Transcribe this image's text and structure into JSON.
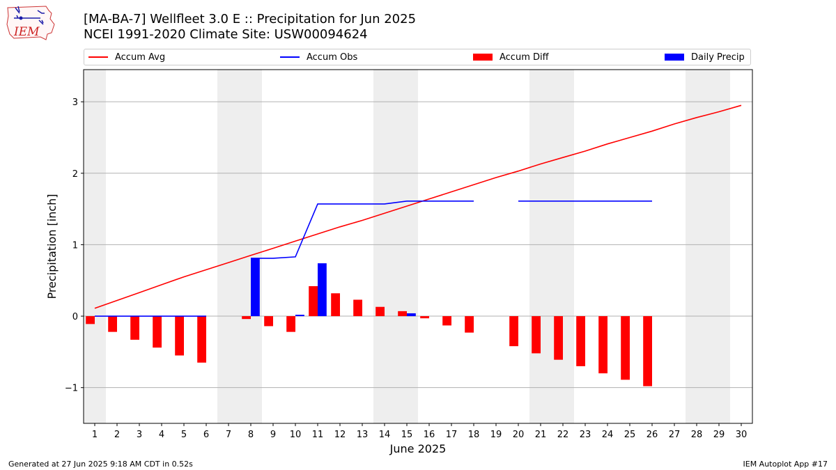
{
  "header": {
    "title_line1": "[MA-BA-7] Wellfleet 3.0 E :: Precipitation for Jun 2025",
    "title_line2": "NCEI 1991-2020 Climate Site: USW00094624",
    "logo_text": "IEM"
  },
  "footer": {
    "generated": "Generated at 27 Jun 2025 9:18 AM CDT in 0.52s",
    "app": "IEM Autoplot App #17"
  },
  "colors": {
    "avg": "#ff0000",
    "obs": "#0000ff",
    "diff": "#ff0000",
    "daily": "#0000ff",
    "weekend_band": "#eeeeee",
    "grid": "#b0b0b0"
  },
  "chart_data": {
    "type": "bar",
    "xlabel": "June 2025",
    "ylabel": "Precipitation [inch]",
    "xlim": [
      0.5,
      30.5
    ],
    "ylim": [
      -1.5,
      3.45
    ],
    "x_ticks": [
      1,
      2,
      3,
      4,
      5,
      6,
      7,
      8,
      9,
      10,
      11,
      12,
      13,
      14,
      15,
      16,
      17,
      18,
      19,
      20,
      21,
      22,
      23,
      24,
      25,
      26,
      27,
      28,
      29,
      30
    ],
    "y_ticks": [
      -1,
      0,
      1,
      2,
      3
    ],
    "y_tick_labels": [
      "−1",
      "0",
      "1",
      "2",
      "3"
    ],
    "grid": "horizontal",
    "legend_position": "top",
    "weekend_bands": [
      [
        0.5,
        1.5
      ],
      [
        6.5,
        8.5
      ],
      [
        13.5,
        15.5
      ],
      [
        20.5,
        22.5
      ],
      [
        27.5,
        29.5
      ]
    ],
    "legend": [
      {
        "label": "Accum Avg",
        "kind": "line",
        "color": "#ff0000"
      },
      {
        "label": "Accum Obs",
        "kind": "line",
        "color": "#0000ff"
      },
      {
        "label": "Accum Diff",
        "kind": "bar",
        "color": "#ff0000"
      },
      {
        "label": "Daily Precip",
        "kind": "bar",
        "color": "#0000ff"
      }
    ],
    "series": [
      {
        "name": "Accum Avg",
        "type": "line",
        "color": "#ff0000",
        "x": [
          1,
          2,
          3,
          4,
          5,
          6,
          7,
          8,
          9,
          10,
          11,
          12,
          13,
          14,
          15,
          16,
          17,
          18,
          19,
          20,
          21,
          22,
          23,
          24,
          25,
          26,
          27,
          28,
          29,
          30
        ],
        "values": [
          0.11,
          0.22,
          0.33,
          0.44,
          0.55,
          0.65,
          0.75,
          0.85,
          0.95,
          1.05,
          1.15,
          1.25,
          1.34,
          1.44,
          1.54,
          1.64,
          1.74,
          1.84,
          1.94,
          2.03,
          2.13,
          2.22,
          2.31,
          2.41,
          2.5,
          2.59,
          2.69,
          2.78,
          2.86,
          2.95
        ]
      },
      {
        "name": "Accum Obs",
        "type": "line",
        "color": "#0000ff",
        "x": [
          1,
          2,
          3,
          4,
          5,
          6,
          7,
          8,
          9,
          10,
          11,
          12,
          13,
          14,
          15,
          16,
          17,
          18,
          19,
          20,
          21,
          22,
          23,
          24,
          25,
          26,
          27,
          28,
          29,
          30
        ],
        "values": [
          0,
          0,
          0,
          0,
          0,
          0,
          null,
          0.81,
          0.81,
          0.83,
          1.57,
          1.57,
          1.57,
          1.57,
          1.61,
          1.61,
          1.61,
          1.61,
          null,
          1.61,
          1.61,
          1.61,
          1.61,
          1.61,
          1.61,
          1.61,
          null,
          null,
          null,
          null
        ]
      },
      {
        "name": "Accum Diff",
        "type": "bar",
        "color": "#ff0000",
        "x": [
          1,
          2,
          3,
          4,
          5,
          6,
          7,
          8,
          9,
          10,
          11,
          12,
          13,
          14,
          15,
          16,
          17,
          18,
          19,
          20,
          21,
          22,
          23,
          24,
          25,
          26,
          27,
          28,
          29,
          30
        ],
        "values": [
          -0.11,
          -0.22,
          -0.33,
          -0.44,
          -0.55,
          -0.65,
          null,
          -0.04,
          -0.14,
          -0.22,
          0.42,
          0.32,
          0.23,
          0.13,
          0.07,
          -0.03,
          -0.13,
          -0.23,
          null,
          -0.42,
          -0.52,
          -0.61,
          -0.7,
          -0.8,
          -0.89,
          -0.98,
          null,
          null,
          null,
          null
        ]
      },
      {
        "name": "Daily Precip",
        "type": "bar",
        "color": "#0000ff",
        "x": [
          1,
          2,
          3,
          4,
          5,
          6,
          7,
          8,
          9,
          10,
          11,
          12,
          13,
          14,
          15,
          16,
          17,
          18,
          19,
          20,
          21,
          22,
          23,
          24,
          25,
          26,
          27,
          28,
          29,
          30
        ],
        "values": [
          0,
          0,
          0,
          0,
          0,
          0,
          null,
          0.81,
          0,
          0.02,
          0.74,
          0,
          0,
          0,
          0.04,
          0,
          0,
          0,
          null,
          0,
          0,
          0,
          0,
          0,
          0,
          0,
          null,
          null,
          null,
          null
        ]
      }
    ]
  }
}
